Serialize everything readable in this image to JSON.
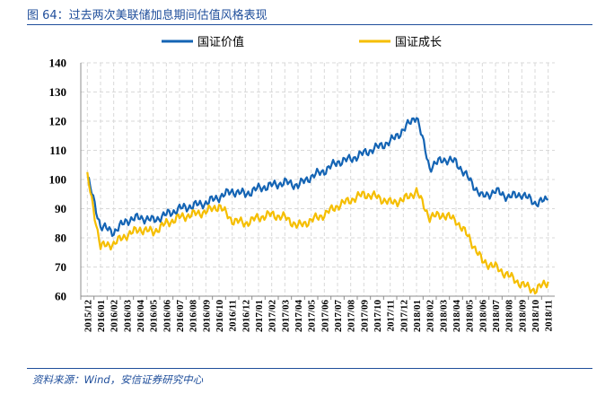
{
  "figure_title": "图 64：过去两次美联储加息期间估值风格表现",
  "source": "资料来源：Wind，安信证券研究中心",
  "colors": {
    "series_1": "#1464b4",
    "series_2": "#f5be00",
    "header_blue": "#1f4e9b",
    "grid": "#d9d9d9"
  },
  "chart_data": {
    "type": "line",
    "title": "",
    "xlabel": "",
    "ylabel": "",
    "ylim": [
      60,
      140
    ],
    "yticks": [
      "140",
      "130",
      "120",
      "110",
      "100",
      "90",
      "80",
      "70",
      "60"
    ],
    "grid": "dashed-horizontal-and-vertical",
    "legend_position": "top",
    "categories": [
      "2015/12",
      "2016/01",
      "2016/02",
      "2016/03",
      "2016/04",
      "2016/05",
      "2016/06",
      "2016/07",
      "2016/08",
      "2016/09",
      "2016/10",
      "2016/11",
      "2016/12",
      "2017/01",
      "2017/02",
      "2017/03",
      "2017/04",
      "2017/05",
      "2017/06",
      "2017/07",
      "2017/08",
      "2017/09",
      "2017/10",
      "2017/11",
      "2017/12",
      "2018/01",
      "2018/02",
      "2018/03",
      "2018/04",
      "2018/05",
      "2018/06",
      "2018/07",
      "2018/08",
      "2018/09",
      "2018/10",
      "2018/11"
    ],
    "series": [
      {
        "name": "国证价值",
        "values": [
          101,
          84,
          82,
          86,
          87,
          86,
          88,
          90,
          91,
          92,
          94,
          96,
          95,
          97,
          98,
          99,
          98,
          101,
          103,
          106,
          107,
          109,
          111,
          113,
          117,
          122,
          104,
          107,
          106,
          100,
          94,
          96,
          94,
          95,
          92,
          93
        ]
      },
      {
        "name": "国证成长",
        "values": [
          101,
          77,
          78,
          81,
          83,
          82,
          85,
          87,
          88,
          89,
          91,
          86,
          85,
          87,
          88,
          87,
          84,
          86,
          88,
          91,
          93,
          95,
          94,
          92,
          93,
          96,
          87,
          88,
          86,
          80,
          72,
          70,
          67,
          64,
          62,
          65
        ]
      }
    ]
  }
}
